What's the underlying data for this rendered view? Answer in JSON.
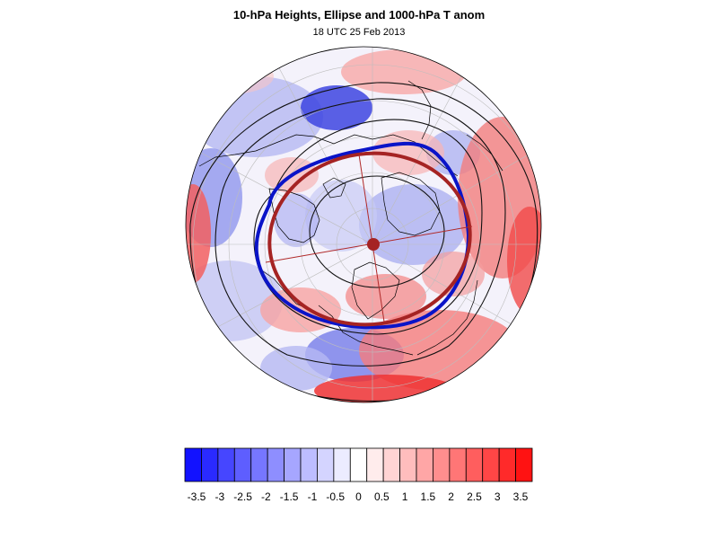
{
  "title": "10-hPa Heights, Ellipse and 1000-hPa T anom",
  "subtitle": "18 UTC 25 Feb 2013",
  "map": {
    "projection": "polar-stereographic-north",
    "field": "1000-hPa T anom",
    "contours": "10-hPa Heights",
    "ellipse": "Ellipse",
    "colors": {
      "height_contours": "#000000",
      "vortex_edge": "#0a14c8",
      "ellipse": "#a52323",
      "coastlines": "#000000",
      "graticule": "#bdbdbd"
    }
  },
  "colorbar": {
    "tick_labels": [
      "-3.5",
      "-3",
      "-2.5",
      "-2",
      "-1.5",
      "-1",
      "-0.5",
      "0",
      "0.5",
      "1",
      "1.5",
      "2",
      "2.5",
      "3",
      "3.5"
    ],
    "colors": [
      "#1212ff",
      "#2a2aff",
      "#4646ff",
      "#5e5eff",
      "#7676ff",
      "#8e8eff",
      "#a6a6ff",
      "#bdbdff",
      "#d4d4ff",
      "#ececff",
      "#ffffff",
      "#ffecec",
      "#ffd4d4",
      "#ffbdbd",
      "#ffa6a6",
      "#ff8e8e",
      "#ff7676",
      "#ff5e5e",
      "#ff4646",
      "#ff2a2a",
      "#ff1212"
    ]
  }
}
